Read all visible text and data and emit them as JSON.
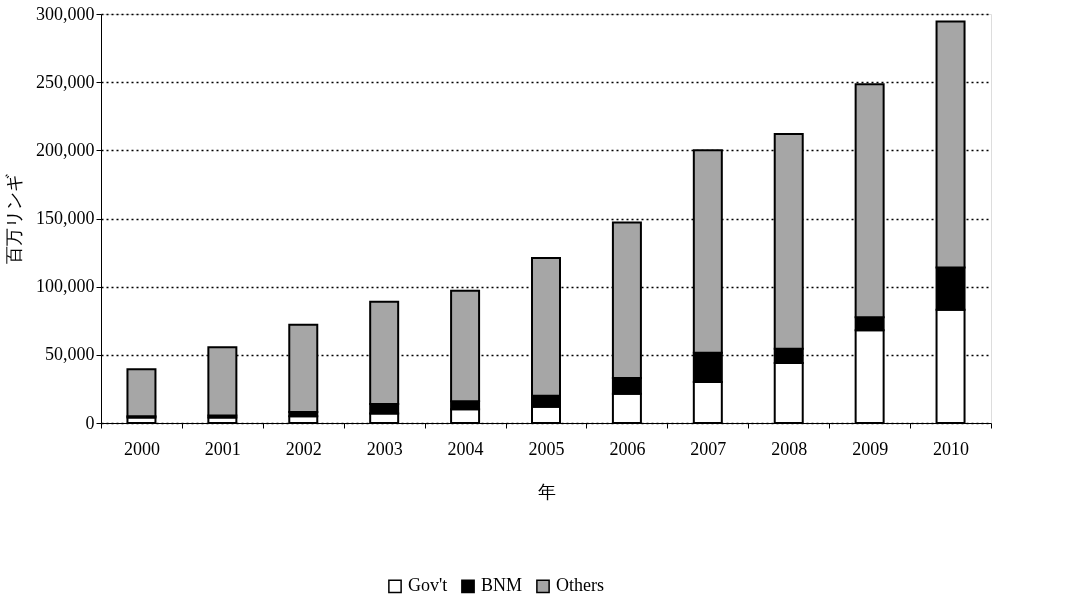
{
  "chart_data": {
    "type": "bar",
    "stacked": true,
    "xlabel": "年",
    "ylabel": "百万リンギ",
    "categories": [
      "2000",
      "2001",
      "2002",
      "2003",
      "2004",
      "2005",
      "2006",
      "2007",
      "2008",
      "2009",
      "2010"
    ],
    "series": [
      {
        "name": "Gov't",
        "color": "#ffffff",
        "values": [
          4000,
          4000,
          5000,
          7000,
          10000,
          12000,
          21500,
          30000,
          44000,
          68000,
          83000
        ]
      },
      {
        "name": "BNM",
        "color": "#000000",
        "values": [
          1000,
          1500,
          3000,
          7000,
          6000,
          8000,
          11500,
          21500,
          10500,
          9500,
          31000
        ]
      },
      {
        "name": "Others",
        "color": "#a6a6a6",
        "values": [
          34500,
          50000,
          64000,
          75000,
          81000,
          101000,
          114000,
          148500,
          157500,
          171000,
          180500
        ]
      }
    ],
    "ylim": [
      0,
      300000
    ],
    "yticks": [
      0,
      {
        "value": 50000,
        "label": "50,000"
      },
      {
        "value": 100000,
        "label": "100,000"
      },
      {
        "value": 150000,
        "label": "150,000"
      },
      {
        "value": 200000,
        "label": "200,000"
      },
      {
        "value": 250000,
        "label": "250,000"
      },
      {
        "value": 300000,
        "label": "300,000"
      }
    ],
    "grid": "y",
    "legend": "bottom"
  }
}
